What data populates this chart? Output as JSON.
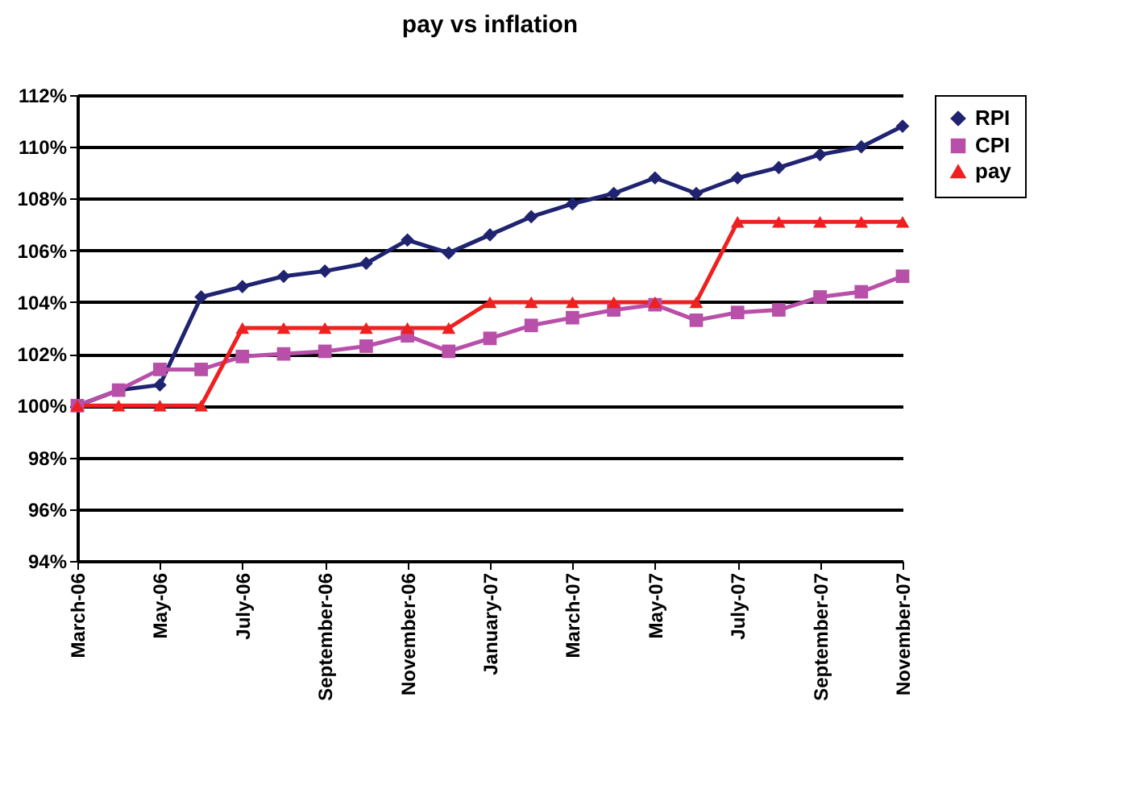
{
  "chart_data": {
    "type": "line",
    "title": "pay vs inflation",
    "categories": [
      "March-06",
      null,
      "May-06",
      null,
      "July-06",
      null,
      "September-06",
      null,
      "November-06",
      null,
      "January-07",
      null,
      "March-07",
      null,
      "May-07",
      null,
      "July-07",
      null,
      "September-07",
      null,
      "November-07"
    ],
    "series": [
      {
        "name": "RPI",
        "color": "#1f2370",
        "marker": "diamond",
        "values": [
          100,
          100.6,
          100.8,
          104.2,
          104.6,
          105.0,
          105.2,
          105.5,
          106.4,
          105.9,
          106.6,
          107.3,
          107.8,
          108.2,
          108.8,
          108.2,
          108.8,
          109.2,
          109.7,
          110.0,
          110.8
        ]
      },
      {
        "name": "CPI",
        "color": "#b84fa8",
        "marker": "square",
        "values": [
          100,
          100.6,
          101.4,
          101.4,
          101.9,
          102.0,
          102.1,
          102.3,
          102.7,
          102.1,
          102.6,
          103.1,
          103.4,
          103.7,
          103.9,
          103.3,
          103.6,
          103.7,
          104.2,
          104.4,
          105.0
        ]
      },
      {
        "name": "pay",
        "color": "#ee2020",
        "marker": "triangle",
        "values": [
          100,
          100,
          100,
          100,
          103,
          103,
          103,
          103,
          103,
          103,
          104,
          104,
          104,
          104,
          104,
          104,
          107.1,
          107.1,
          107.1,
          107.1,
          107.1
        ]
      }
    ],
    "ylim": [
      94,
      112
    ],
    "yticks": [
      {
        "value": 94,
        "label": "94%"
      },
      {
        "value": 96,
        "label": "96%"
      },
      {
        "value": 98,
        "label": "98%"
      },
      {
        "value": 100,
        "label": "100%"
      },
      {
        "value": 102,
        "label": "102%"
      },
      {
        "value": 104,
        "label": "104%"
      },
      {
        "value": 106,
        "label": "106%"
      },
      {
        "value": 108,
        "label": "108%"
      },
      {
        "value": 110,
        "label": "110%"
      },
      {
        "value": 112,
        "label": "112%"
      }
    ],
    "grid": "y",
    "legend": "right",
    "line_style": "solid"
  }
}
